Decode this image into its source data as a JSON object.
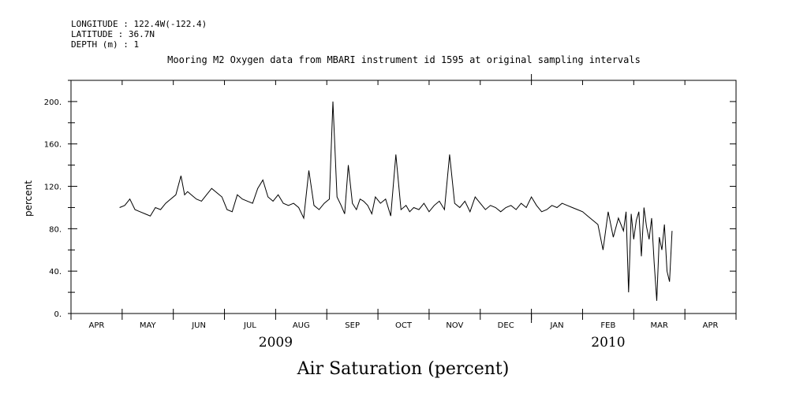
{
  "header": {
    "longitude": "LONGITUDE : 122.4W(-122.4)",
    "latitude": "LATITUDE : 36.7N",
    "depth": "DEPTH (m) : 1"
  },
  "chart_data": {
    "type": "line",
    "title": "Mooring M2 Oxygen data from MBARI instrument id 1595 at original sampling intervals",
    "xlabel": "Air Saturation (percent)",
    "ylabel": "percent",
    "ylim": [
      0,
      220
    ],
    "yticks": [
      0,
      40,
      80,
      120,
      160,
      200
    ],
    "ytick_labels": [
      "0.",
      "40.",
      "80.",
      "120.",
      "160.",
      "200."
    ],
    "x_range_months": [
      0,
      13
    ],
    "month_ticks": [
      "APR",
      "MAY",
      "JUN",
      "JUL",
      "AUG",
      "SEP",
      "OCT",
      "NOV",
      "DEC",
      "JAN",
      "FEB",
      "MAR",
      "APR"
    ],
    "years": [
      {
        "label": "2009",
        "month_index": 4
      },
      {
        "label": "2010",
        "month_index": 10.5
      }
    ],
    "grid": false,
    "series": [
      {
        "color": "#000000",
        "x_months": [
          0.95,
          1.05,
          1.15,
          1.25,
          1.35,
          1.45,
          1.55,
          1.65,
          1.75,
          1.85,
          1.95,
          2.05,
          2.15,
          2.22,
          2.28,
          2.35,
          2.45,
          2.55,
          2.65,
          2.75,
          2.85,
          2.95,
          3.05,
          3.15,
          3.25,
          3.35,
          3.45,
          3.55,
          3.65,
          3.75,
          3.85,
          3.95,
          4.05,
          4.15,
          4.25,
          4.35,
          4.45,
          4.55,
          4.65,
          4.75,
          4.85,
          4.95,
          5.05,
          5.12,
          5.2,
          5.28,
          5.35,
          5.42,
          5.5,
          5.58,
          5.65,
          5.72,
          5.8,
          5.88,
          5.95,
          6.05,
          6.15,
          6.25,
          6.35,
          6.45,
          6.55,
          6.62,
          6.7,
          6.8,
          6.9,
          7.0,
          7.1,
          7.2,
          7.3,
          7.4,
          7.5,
          7.6,
          7.7,
          7.8,
          7.9,
          8.0,
          8.1,
          8.2,
          8.3,
          8.4,
          8.5,
          8.6,
          8.7,
          8.8,
          8.9,
          9.0,
          9.1,
          9.2,
          9.3,
          9.4,
          9.5,
          9.6,
          9.7,
          9.8,
          9.9,
          10.0,
          10.1,
          10.2,
          10.3,
          10.4,
          10.5,
          10.6,
          10.7,
          10.8,
          10.85,
          10.9,
          10.95,
          11.0,
          11.05,
          11.1,
          11.15,
          11.2,
          11.25,
          11.3,
          11.35,
          11.4,
          11.45,
          11.5,
          11.55,
          11.6,
          11.65,
          11.7,
          11.75
        ],
        "y": [
          100,
          102,
          108,
          98,
          96,
          94,
          92,
          100,
          98,
          104,
          108,
          112,
          130,
          112,
          115,
          112,
          108,
          106,
          112,
          118,
          114,
          110,
          98,
          96,
          112,
          108,
          106,
          104,
          118,
          126,
          110,
          106,
          112,
          104,
          102,
          104,
          100,
          90,
          135,
          102,
          98,
          104,
          108,
          200,
          110,
          102,
          94,
          140,
          104,
          98,
          108,
          106,
          102,
          94,
          110,
          104,
          108,
          92,
          150,
          98,
          102,
          96,
          100,
          98,
          104,
          96,
          102,
          106,
          98,
          150,
          104,
          100,
          106,
          96,
          110,
          104,
          98,
          102,
          100,
          96,
          100,
          102,
          98,
          104,
          100,
          110,
          102,
          96,
          98,
          102,
          100,
          104,
          102,
          100,
          98,
          96,
          92,
          88,
          84,
          60,
          96,
          72,
          90,
          78,
          96,
          20,
          94,
          70,
          88,
          96,
          54,
          100,
          82,
          70,
          90,
          48,
          12,
          72,
          60,
          84,
          40,
          30,
          78
        ]
      }
    ]
  }
}
